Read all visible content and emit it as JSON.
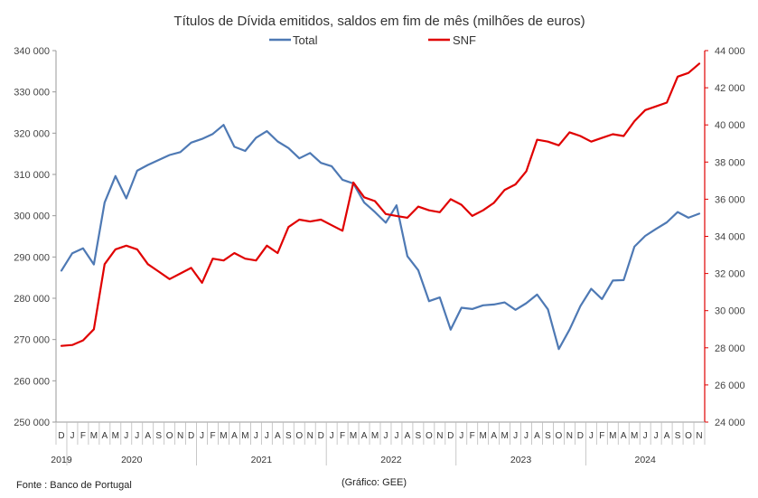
{
  "chart_data": {
    "type": "line",
    "title": "Títulos de Dívida emitidos, saldos em fim de mês  (milhões de euros)",
    "x_start": "2019-12",
    "x": [
      "2019-12",
      "2020-01",
      "2020-02",
      "2020-03",
      "2020-04",
      "2020-05",
      "2020-06",
      "2020-07",
      "2020-08",
      "2020-09",
      "2020-10",
      "2020-11",
      "2020-12",
      "2021-01",
      "2021-02",
      "2021-03",
      "2021-04",
      "2021-05",
      "2021-06",
      "2021-07",
      "2021-08",
      "2021-09",
      "2021-10",
      "2021-11",
      "2021-12",
      "2022-01",
      "2022-02",
      "2022-03",
      "2022-04",
      "2022-05",
      "2022-06",
      "2022-07",
      "2022-08",
      "2022-09",
      "2022-10",
      "2022-11",
      "2022-12",
      "2023-01",
      "2023-02",
      "2023-03",
      "2023-04",
      "2023-05",
      "2023-06",
      "2023-07",
      "2023-08",
      "2023-09",
      "2023-10",
      "2023-11",
      "2023-12",
      "2024-01",
      "2024-02",
      "2024-03",
      "2024-04",
      "2024-05",
      "2024-06",
      "2024-07",
      "2024-08",
      "2024-09",
      "2024-10",
      "2024-11"
    ],
    "month_labels": [
      "D",
      "J",
      "F",
      "M",
      "A",
      "M",
      "J",
      "J",
      "A",
      "S",
      "O",
      "N",
      "D",
      "J",
      "F",
      "M",
      "A",
      "M",
      "J",
      "J",
      "A",
      "S",
      "O",
      "N",
      "D",
      "J",
      "F",
      "M",
      "A",
      "M",
      "J",
      "J",
      "A",
      "S",
      "O",
      "N",
      "D",
      "J",
      "F",
      "M",
      "A",
      "M",
      "J",
      "J",
      "A",
      "S",
      "O",
      "N",
      "D",
      "J",
      "F",
      "M",
      "A",
      "M",
      "J",
      "J",
      "A",
      "S",
      "O",
      "N"
    ],
    "year_labels": [
      "2019",
      "2020",
      "2021",
      "2022",
      "2023",
      "2024"
    ],
    "y_left": {
      "min": 250000,
      "max": 340000,
      "step": 10000,
      "tick_labels": [
        "250 000",
        "260 000",
        "270 000",
        "280 000",
        "290 000",
        "300 000",
        "310 000",
        "320 000",
        "330 000",
        "340 000"
      ]
    },
    "y_right": {
      "min": 24000,
      "max": 44000,
      "step": 2000,
      "tick_labels": [
        "24 000",
        "26 000",
        "28 000",
        "30 000",
        "32 000",
        "34 000",
        "36 000",
        "38 000",
        "40 000",
        "42 000",
        "44 000"
      ]
    },
    "series": [
      {
        "name": "Total",
        "axis": "left",
        "color": "#4e79b4",
        "values": [
          286700,
          290900,
          292100,
          288200,
          303200,
          309600,
          304200,
          310900,
          312300,
          313500,
          314700,
          315400,
          317700,
          318600,
          319800,
          322000,
          316700,
          315700,
          318900,
          320500,
          318000,
          316400,
          313900,
          315200,
          312800,
          312000,
          308700,
          307800,
          303200,
          300900,
          298300,
          302500,
          290200,
          286800,
          279300,
          280200,
          272400,
          277700,
          277400,
          278300,
          278500,
          279000,
          277200,
          278800,
          280900,
          277300,
          267700,
          272400,
          278100,
          282300,
          279800,
          284300,
          284400,
          292500,
          295100,
          296800,
          298400,
          300900,
          299500,
          300500
        ]
      },
      {
        "name": "SNF",
        "axis": "right",
        "color": "#e00000",
        "values": [
          28100,
          28150,
          28400,
          29000,
          32500,
          33300,
          33500,
          33300,
          32500,
          32100,
          31700,
          32000,
          32300,
          31500,
          32800,
          32700,
          33100,
          32800,
          32700,
          33500,
          33100,
          34500,
          34900,
          34800,
          34900,
          34600,
          34300,
          36900,
          36100,
          35900,
          35200,
          35100,
          35000,
          35600,
          35400,
          35300,
          36000,
          35700,
          35100,
          35400,
          35800,
          36500,
          36800,
          37500,
          39200,
          39100,
          38900,
          39600,
          39400,
          39100,
          39300,
          39500,
          39400,
          40200,
          40800,
          41000,
          41200,
          42600,
          42800,
          43300
        ]
      }
    ],
    "legend_position": "top-center",
    "grid": false,
    "footnote_left": "Fonte : Banco de Portugal",
    "footnote_center": "(Gráfico: GEE)"
  }
}
